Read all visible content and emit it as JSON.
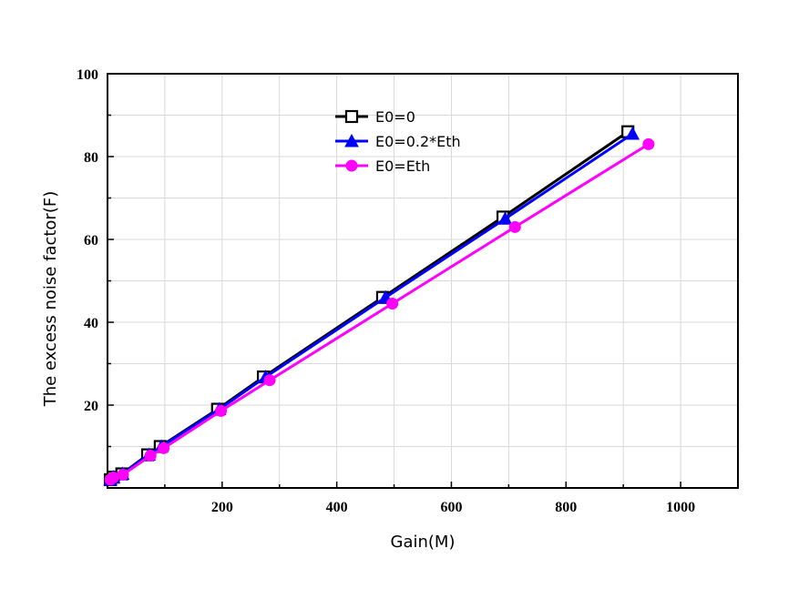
{
  "chart_data": {
    "type": "line",
    "title": "",
    "xlabel": "Gain(M)",
    "ylabel": "The excess noise factor(F)",
    "xlim": [
      0,
      1100
    ],
    "ylim": [
      0,
      100
    ],
    "x_ticks": [
      200,
      400,
      600,
      800,
      1000
    ],
    "y_ticks": [
      20,
      40,
      60,
      80,
      100
    ],
    "grid": true,
    "legend_position": "top-center",
    "series": [
      {
        "name": "E0=0",
        "color": "#000000",
        "marker": "open-square",
        "x": [
          5,
          10,
          25,
          70,
          92,
          192,
          272,
          480,
          690,
          908
        ],
        "y": [
          2.0,
          2.6,
          3.4,
          8.0,
          10.0,
          19.0,
          26.8,
          46.0,
          65.4,
          86.0
        ]
      },
      {
        "name": "E0=0.2*Eth",
        "color": "#0000ff",
        "marker": "filled-triangle",
        "x": [
          5,
          10,
          26,
          72,
          94,
          195,
          276,
          485,
          694,
          916
        ],
        "y": [
          2.0,
          2.6,
          3.4,
          8.0,
          10.0,
          19.0,
          26.8,
          46.0,
          65.0,
          85.5
        ]
      },
      {
        "name": "E0=Eth",
        "color": "#ff00ff",
        "marker": "filled-circle",
        "x": [
          5,
          10,
          27,
          75,
          98,
          198,
          283,
          497,
          711,
          944
        ],
        "y": [
          2.0,
          2.5,
          3.2,
          7.8,
          9.6,
          18.6,
          26.0,
          44.5,
          63.0,
          83.0
        ]
      }
    ]
  }
}
